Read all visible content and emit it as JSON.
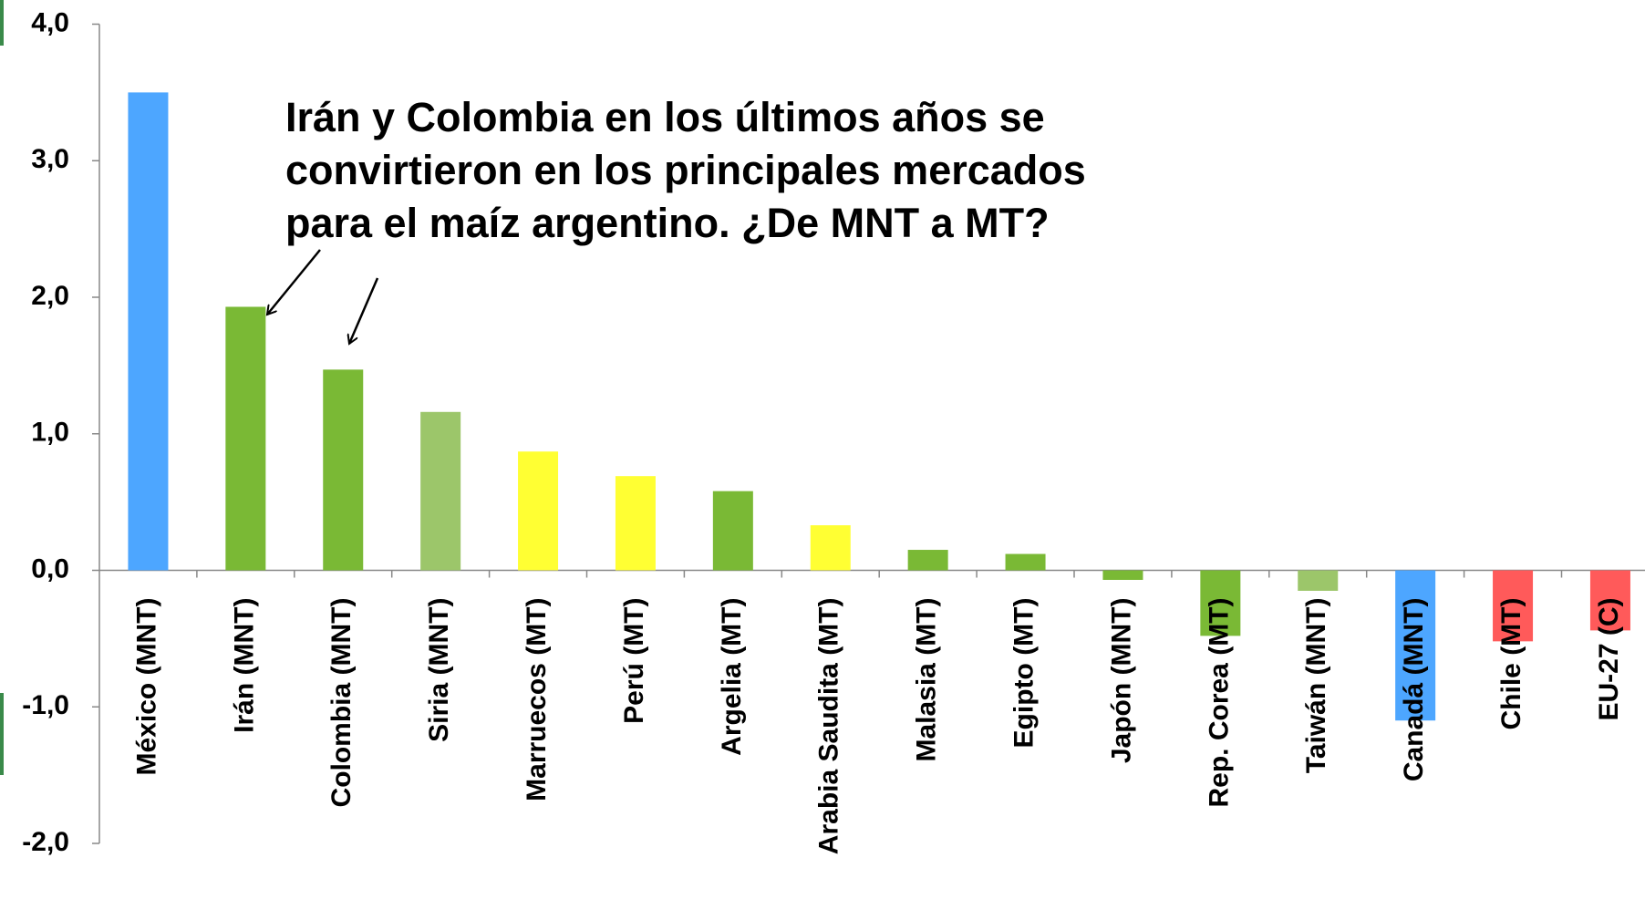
{
  "chart_data": {
    "type": "bar",
    "annotation": [
      "Irán y Colombia en los últimos años se",
      "convirtieron en los principales mercados",
      "para el maíz argentino. ¿De MNT a MT?"
    ],
    "categories": [
      "México (MNT)",
      "Irán (MNT)",
      "Colombia (MNT)",
      "Siria (MNT)",
      "Marruecos (MT)",
      "Perú (MT)",
      "Argelia (MT)",
      "Arabia Saudita (MT)",
      "Malasia (MT)",
      "Egipto (MT)",
      "Japón (MNT)",
      "Rep. Corea (MT)",
      "Taiwán (MNT)",
      "Canadá (MNT)",
      "Chile (MT)",
      "EU-27 (C)"
    ],
    "values": [
      3.5,
      1.93,
      1.47,
      1.16,
      0.87,
      0.69,
      0.58,
      0.33,
      0.15,
      0.12,
      -0.07,
      -0.48,
      -0.15,
      -1.1,
      -0.52,
      -0.44
    ],
    "colors": [
      "#4da6ff",
      "#7ab935",
      "#7ab935",
      "#9cc66a",
      "#ffff33",
      "#ffff33",
      "#7ab935",
      "#ffff33",
      "#7ab935",
      "#7ab935",
      "#7ab935",
      "#7ab935",
      "#9cc66a",
      "#4da6ff",
      "#ff5a5a",
      "#ff5a5a"
    ],
    "ylim": [
      -2,
      4
    ],
    "yticks": [
      {
        "value": -2,
        "label": "-2,0"
      },
      {
        "value": -1,
        "label": "-1,0"
      },
      {
        "value": 0,
        "label": "0,0"
      },
      {
        "value": 1,
        "label": "1,0"
      },
      {
        "value": 2,
        "label": "2,0"
      },
      {
        "value": 3,
        "label": "3,0"
      },
      {
        "value": 4,
        "label": "4,0"
      }
    ],
    "grid": false
  }
}
